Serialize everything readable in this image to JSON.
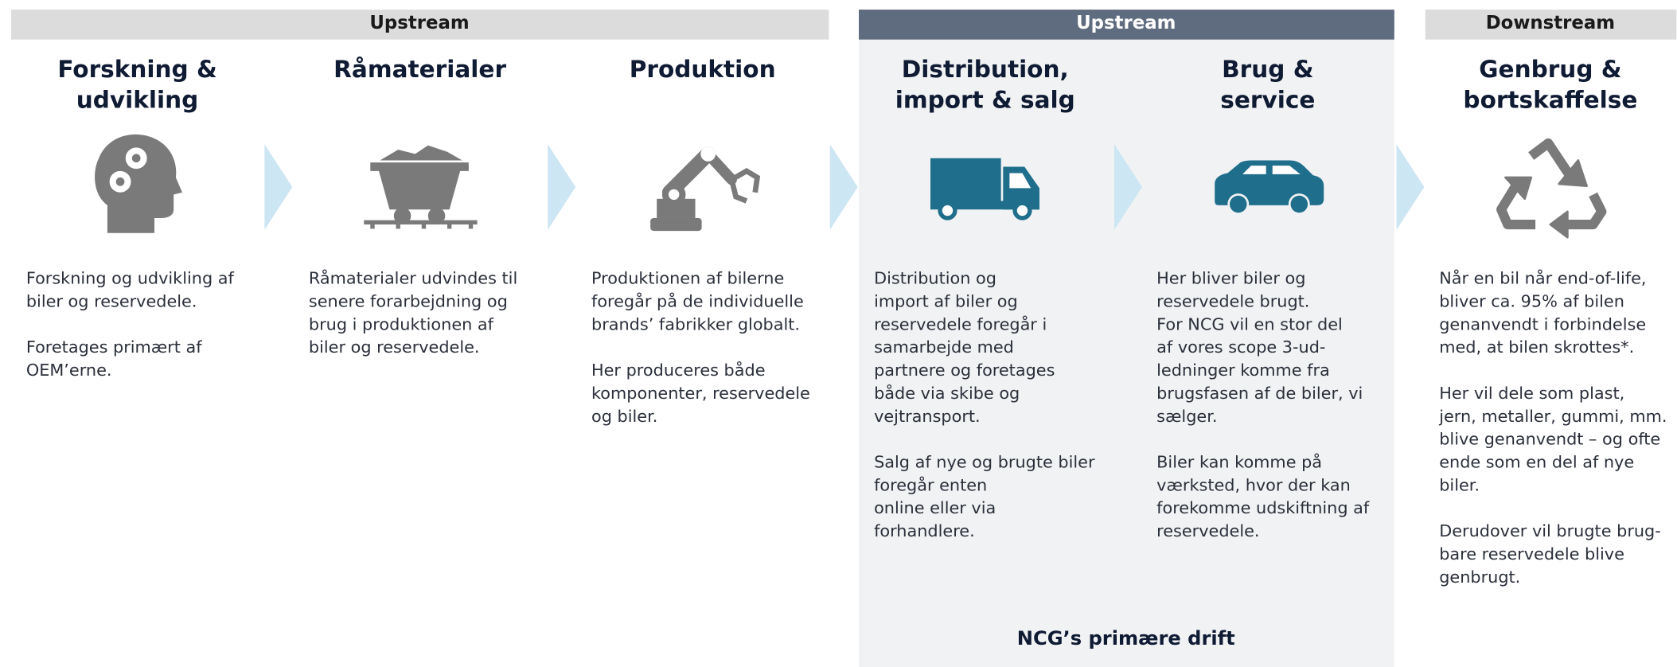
{
  "headers": [
    {
      "label": "Upstream"
    },
    {
      "label": "Upstream"
    },
    {
      "label": "Downstream"
    }
  ],
  "columns": [
    {
      "title": [
        "Forskning &",
        "udvikling"
      ],
      "paragraphs": [
        [
          "Forskning og udvikling af",
          "biler og reservedele."
        ],
        [
          "Foretages primært af",
          "OEM’erne."
        ]
      ]
    },
    {
      "title": [
        "Råmaterialer"
      ],
      "paragraphs": [
        [
          "Råmaterialer udvindes til",
          "senere forarbejdning og",
          "brug i produktionen af",
          "biler og reservedele."
        ]
      ]
    },
    {
      "title": [
        "Produktion"
      ],
      "paragraphs": [
        [
          "Produktionen af bilerne",
          "foregår på de individuelle",
          "brands’ fabrikker globalt."
        ],
        [
          "Her produceres både",
          "komponenter, reservedele",
          "og biler."
        ]
      ]
    },
    {
      "title": [
        "Distribution,",
        "import & salg"
      ],
      "paragraphs": [
        [
          "Distribution og",
          "import af biler og",
          "reservedele foregår i",
          "samarbejde med",
          "partnere og foretages",
          "både via skibe og",
          "vejtransport."
        ],
        [
          "Salg af nye og brugte biler",
          "foregår enten",
          "online eller via",
          "forhandlere."
        ]
      ]
    },
    {
      "title": [
        "Brug &",
        "service"
      ],
      "paragraphs": [
        [
          "Her bliver biler og",
          "reservedele brugt.",
          "For NCG vil en stor del",
          "af vores scope 3-ud-",
          "ledninger komme fra",
          "brugsfasen af de biler, vi",
          "sælger."
        ],
        [
          "Biler kan komme på",
          "værksted, hvor der kan",
          "forekomme udskiftning af",
          "reservedele."
        ]
      ]
    },
    {
      "title": [
        "Genbrug &",
        "bortskaffelse"
      ],
      "paragraphs": [
        [
          "Når en bil når end-of-life,",
          "bliver ca. 95% af bilen",
          "genanvendt i forbindelse",
          "med, at bilen skrottes*."
        ],
        [
          "Her vil dele som plast,",
          "jern, metaller, gummi, mm.",
          "blive genanvendt – og ofte",
          "ende som en del af nye",
          "biler."
        ],
        [
          "Derudover vil brugte brug-",
          "bare reservedele blive",
          "genbrugt."
        ]
      ]
    }
  ],
  "footer": "NCG’s primære drift"
}
